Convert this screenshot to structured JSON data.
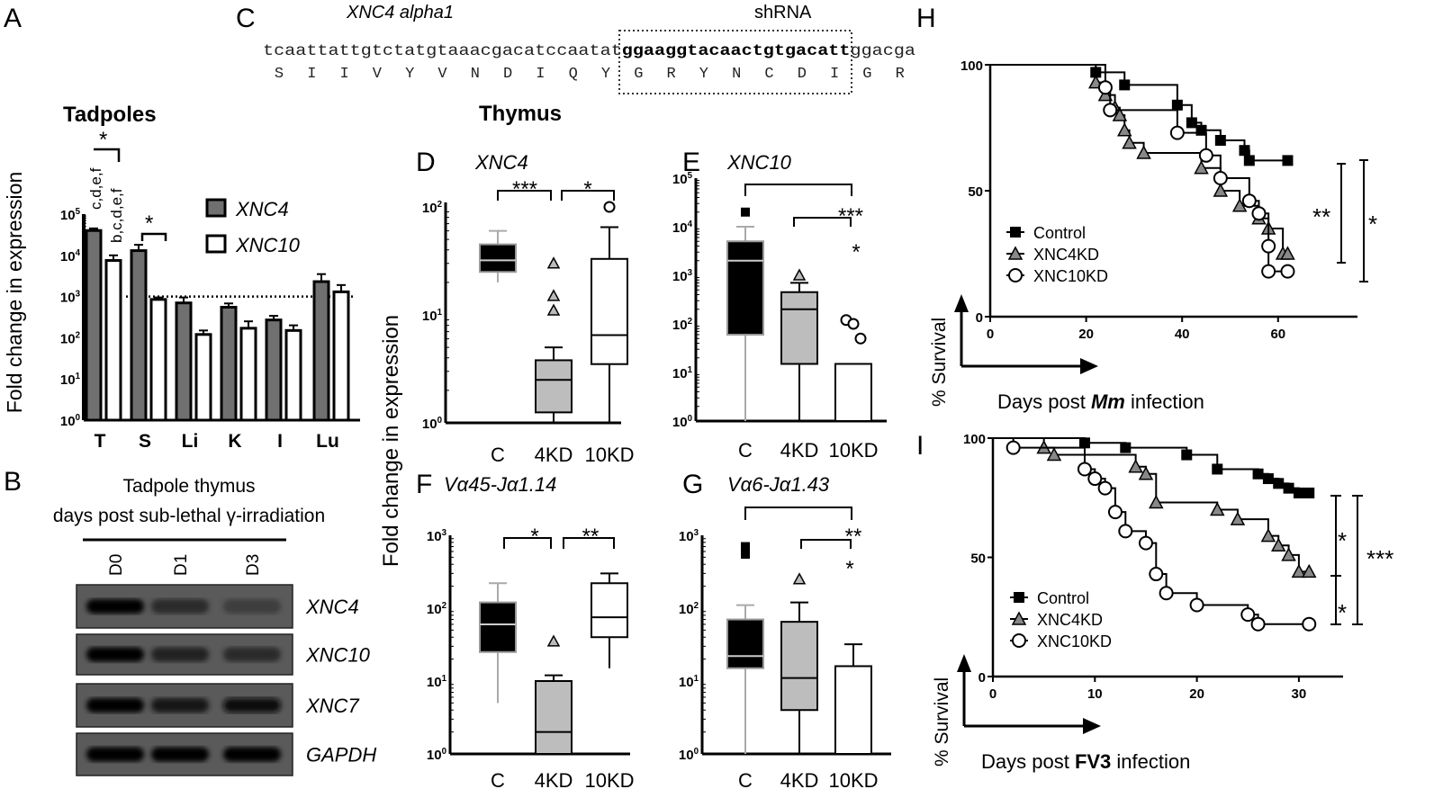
{
  "panel_letters": {
    "A": "A",
    "B": "B",
    "C": "C",
    "D": "D",
    "E": "E",
    "F": "F",
    "G": "G",
    "H": "H",
    "I": "I"
  },
  "colors": {
    "xnc4_fill": "#707070",
    "xnc10_fill": "#ffffff",
    "control_fill": "#000000",
    "kd4_fill": "#bdbdbd",
    "kd10_fill": "#ffffff",
    "whisker_gray": "#aaaaaa"
  },
  "panel_c": {
    "title": "XNC4 alpha1",
    "shrna_label": "shRNA",
    "nt_before": "tcaattattgtctatgtaaacgacatccaatat",
    "nt_shrna": "ggaaggtacaactgtgacatt",
    "nt_after": "ggacga",
    "aa": [
      "S",
      "I",
      "I",
      "V",
      "Y",
      "V",
      "N",
      "D",
      "I",
      "Q",
      "Y",
      "G",
      "R",
      "Y",
      "N",
      "C",
      "D",
      "I",
      "G",
      "R"
    ]
  },
  "panel_b": {
    "title_line1": "Tadpole thymus",
    "title_line2": "days post sub-lethal γ-irradiation",
    "lanes": [
      "D0",
      "D1",
      "D3"
    ],
    "genes": [
      "XNC4",
      "XNC10",
      "XNC7",
      "GAPDH"
    ],
    "band_intensity": [
      [
        1.0,
        0.45,
        0.25
      ],
      [
        1.0,
        0.6,
        0.45
      ],
      [
        1.0,
        0.7,
        0.9
      ],
      [
        1.0,
        1.0,
        1.0
      ]
    ]
  },
  "thymus_title": "Thymus",
  "thymus_ylabel": "Fold change in expression",
  "chart_data": [
    {
      "panel": "A",
      "type": "bar",
      "title": "Tadpoles",
      "ylabel": "Fold change in expression",
      "yscale": "log",
      "ylim": [
        1,
        100000
      ],
      "yticks": [
        "10^0",
        "10^1",
        "10^2",
        "10^3",
        "10^4",
        "10^5"
      ],
      "categories": [
        "T",
        "S",
        "Li",
        "K",
        "I",
        "Lu"
      ],
      "series": [
        {
          "name": "XNC4",
          "values": [
            40000,
            13000,
            700,
            550,
            270,
            2300
          ],
          "err": [
            5000,
            5000,
            250,
            130,
            70,
            1200
          ]
        },
        {
          "name": "XNC10",
          "values": [
            7500,
            850,
            120,
            170,
            150,
            1300
          ],
          "err": [
            2500,
            100,
            30,
            80,
            50,
            600
          ]
        }
      ],
      "reference_line": 1000,
      "annotations": {
        "T_xnc4": "c,d,e,f",
        "T_xnc10": "b,c,d,e,f",
        "T_sig": "*",
        "S_sig": "*"
      },
      "legend": "top-right"
    },
    {
      "panel": "D",
      "type": "box",
      "title": "XNC4",
      "yscale": "log",
      "ylim": [
        1,
        100
      ],
      "yticks": [
        "10^0",
        "10^1",
        "10^2"
      ],
      "categories": [
        "C",
        "4KD",
        "10KD"
      ],
      "boxes": [
        {
          "min": 20,
          "q1": 25,
          "median": 32,
          "q3": 45,
          "max": 60,
          "outliers": []
        },
        {
          "min": 1,
          "q1": 1.25,
          "median": 2.5,
          "q3": 3.8,
          "max": 5,
          "outliers": [
            30,
            15,
            11
          ]
        },
        {
          "min": 1,
          "q1": 3.5,
          "median": 6.5,
          "q3": 33,
          "max": 65,
          "outliers": [
            100
          ]
        }
      ],
      "significance": [
        {
          "pair": [
            "C",
            "4KD"
          ],
          "label": "***"
        },
        {
          "pair": [
            "4KD",
            "10KD"
          ],
          "label": "*"
        }
      ]
    },
    {
      "panel": "E",
      "type": "box",
      "title": "XNC10",
      "yscale": "log",
      "ylim": [
        1,
        100000
      ],
      "yticks": [
        "10^0",
        "10^1",
        "10^2",
        "10^3",
        "10^4",
        "10^5"
      ],
      "categories": [
        "C",
        "4KD",
        "10KD"
      ],
      "boxes": [
        {
          "min": 1,
          "q1": 60,
          "median": 2000,
          "q3": 5000,
          "max": 10000,
          "outliers": [
            20000
          ]
        },
        {
          "min": 1,
          "q1": 15,
          "median": 200,
          "q3": 450,
          "max": 700,
          "outliers": [
            1000
          ]
        },
        {
          "min": 1,
          "q1": 1,
          "median": 1,
          "q3": 15,
          "max": 15,
          "outliers": [
            120,
            100,
            50
          ]
        }
      ],
      "significance": [
        {
          "pair": [
            "C",
            "10KD"
          ],
          "label": ""
        },
        {
          "pair": [
            "4KD",
            "10KD"
          ],
          "label": "***"
        },
        {
          "pair": [
            "10KD",
            "10KD"
          ],
          "label": "*"
        }
      ]
    },
    {
      "panel": "F",
      "type": "box",
      "title": "Vα45-Jα1.14",
      "yscale": "log",
      "ylim": [
        1,
        1000
      ],
      "yticks": [
        "10^0",
        "10^1",
        "10^2",
        "10^3"
      ],
      "categories": [
        "C",
        "4KD",
        "10KD"
      ],
      "boxes": [
        {
          "min": 5,
          "q1": 25,
          "median": 60,
          "q3": 120,
          "max": 220,
          "outliers": []
        },
        {
          "min": 1,
          "q1": 1,
          "median": 2,
          "q3": 10,
          "max": 12,
          "outliers": [
            35
          ]
        },
        {
          "min": 15,
          "q1": 40,
          "median": 75,
          "q3": 220,
          "max": 300,
          "outliers": []
        }
      ],
      "significance": [
        {
          "pair": [
            "C",
            "4KD"
          ],
          "label": "*"
        },
        {
          "pair": [
            "4KD",
            "10KD"
          ],
          "label": "**"
        }
      ]
    },
    {
      "panel": "G",
      "type": "box",
      "title": "Vα6-Jα1.43",
      "yscale": "log",
      "ylim": [
        1,
        1000
      ],
      "yticks": [
        "10^0",
        "10^1",
        "10^2",
        "10^3"
      ],
      "categories": [
        "C",
        "4KD",
        "10KD"
      ],
      "boxes": [
        {
          "min": 1,
          "q1": 15,
          "median": 22,
          "q3": 70,
          "max": 110,
          "outliers": [
            700,
            550
          ]
        },
        {
          "min": 1,
          "q1": 4,
          "median": 11,
          "q3": 65,
          "max": 120,
          "outliers": [
            250
          ]
        },
        {
          "min": 1,
          "q1": 1,
          "median": 1,
          "q3": 16,
          "max": 32,
          "outliers": []
        }
      ],
      "significance": [
        {
          "pair": [
            "C",
            "10KD"
          ],
          "label": ""
        },
        {
          "pair": [
            "4KD",
            "10KD"
          ],
          "label": "**"
        },
        {
          "pair": [
            "10KD",
            "10KD"
          ],
          "label": "*"
        }
      ]
    },
    {
      "panel": "H",
      "type": "line",
      "subtype": "kaplan-meier",
      "xlabel_pre": "Days post ",
      "xlabel_bold": "Mm",
      "xlabel_post": " infection",
      "ylabel": "% Survival",
      "xlim": [
        0,
        70
      ],
      "ylim": [
        0,
        100
      ],
      "xticks": [
        0,
        20,
        40,
        60
      ],
      "yticks": [
        0,
        50,
        100
      ],
      "legend": "bottom-left",
      "series": [
        {
          "name": "Control",
          "marker": "square",
          "points": [
            [
              22,
              97
            ],
            [
              28,
              92
            ],
            [
              39,
              84
            ],
            [
              42,
              77
            ],
            [
              44,
              74
            ],
            [
              48,
              70
            ],
            [
              53,
              66
            ],
            [
              54,
              62
            ],
            [
              62,
              62
            ]
          ]
        },
        {
          "name": "XNC4KD",
          "marker": "triangle",
          "points": [
            [
              22,
              93
            ],
            [
              24,
              88
            ],
            [
              26,
              83
            ],
            [
              27,
              80
            ],
            [
              28,
              74
            ],
            [
              29,
              69
            ],
            [
              32,
              65
            ],
            [
              44,
              59
            ],
            [
              48,
              50
            ],
            [
              52,
              44
            ],
            [
              56,
              39
            ],
            [
              58,
              35
            ],
            [
              61,
              25
            ],
            [
              62,
              25
            ]
          ]
        },
        {
          "name": "XNC10KD",
          "marker": "circle",
          "points": [
            [
              24,
              91
            ],
            [
              25,
              82
            ],
            [
              39,
              73
            ],
            [
              45,
              64
            ],
            [
              48,
              55
            ],
            [
              54,
              46
            ],
            [
              56,
              41
            ],
            [
              58,
              28
            ],
            [
              58,
              18
            ],
            [
              62,
              18
            ]
          ]
        }
      ],
      "significance": [
        {
          "label": "**"
        },
        {
          "label": "*"
        }
      ]
    },
    {
      "panel": "I",
      "type": "line",
      "subtype": "kaplan-meier",
      "xlabel_pre": "Days post ",
      "xlabel_bold": "FV3",
      "xlabel_post": " infection",
      "ylabel": "% Survival",
      "xlim": [
        0,
        31
      ],
      "ylim": [
        0,
        100
      ],
      "xticks": [
        0,
        10,
        20,
        30
      ],
      "yticks": [
        0,
        50,
        100
      ],
      "legend": "bottom-left",
      "series": [
        {
          "name": "Control",
          "marker": "square",
          "points": [
            [
              9,
              98
            ],
            [
              13,
              96
            ],
            [
              19,
              93
            ],
            [
              22,
              87
            ],
            [
              26,
              85
            ],
            [
              27,
              83
            ],
            [
              28,
              81
            ],
            [
              29,
              79
            ],
            [
              30,
              77
            ],
            [
              31,
              77
            ]
          ]
        },
        {
          "name": "XNC4KD",
          "marker": "triangle",
          "points": [
            [
              5,
              96
            ],
            [
              6,
              93
            ],
            [
              14,
              88
            ],
            [
              15,
              85
            ],
            [
              16,
              73
            ],
            [
              22,
              70
            ],
            [
              24,
              66
            ],
            [
              27,
              59
            ],
            [
              28,
              55
            ],
            [
              29,
              51
            ],
            [
              30,
              44
            ],
            [
              31,
              44
            ]
          ]
        },
        {
          "name": "XNC10KD",
          "marker": "circle",
          "points": [
            [
              2,
              96
            ],
            [
              9,
              87
            ],
            [
              10,
              83
            ],
            [
              11,
              79
            ],
            [
              12,
              69
            ],
            [
              13,
              61
            ],
            [
              15,
              56
            ],
            [
              16,
              43
            ],
            [
              17,
              35
            ],
            [
              20,
              30
            ],
            [
              25,
              26
            ],
            [
              26,
              22
            ],
            [
              31,
              22
            ]
          ]
        }
      ],
      "significance": [
        {
          "label": "*"
        },
        {
          "label": "*"
        },
        {
          "label": "***"
        }
      ]
    }
  ]
}
